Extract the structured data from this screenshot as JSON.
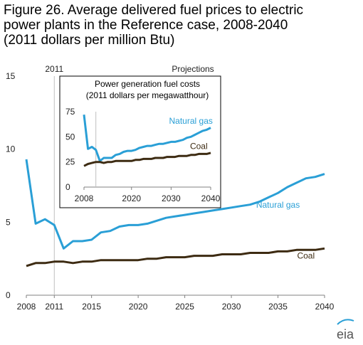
{
  "title_lines": [
    "Figure 26. Average delivered fuel prices to electric",
    "power plants in the Reference case, 2008-2040",
    "(2011 dollars per million Btu)"
  ],
  "logo_text": "eia",
  "colors": {
    "natural_gas": "#2a9fd6",
    "coal": "#3d2b12",
    "axis": "#808080",
    "divider": "#bfbfbf"
  },
  "chart_data": [
    {
      "type": "line",
      "title": "Figure 26. Average delivered fuel prices to electric power plants in the Reference case, 2008-2040 (2011 dollars per million Btu)",
      "annotations": [
        "2011",
        "Projections"
      ],
      "divider_year": 2011,
      "xlim": [
        2008,
        2040
      ],
      "ylim": [
        0,
        15
      ],
      "x_ticks": [
        2008,
        2011,
        2015,
        2020,
        2025,
        2030,
        2035,
        2040
      ],
      "y_ticks": [
        0,
        5,
        10,
        15
      ],
      "grid": false,
      "x": [
        2008,
        2009,
        2010,
        2011,
        2012,
        2013,
        2014,
        2015,
        2016,
        2017,
        2018,
        2019,
        2020,
        2021,
        2022,
        2023,
        2024,
        2025,
        2026,
        2027,
        2028,
        2029,
        2030,
        2031,
        2032,
        2033,
        2034,
        2035,
        2036,
        2037,
        2038,
        2039,
        2040
      ],
      "series": [
        {
          "name": "Natural gas",
          "label_year": 2035,
          "label_value": 6.0,
          "values": [
            9.3,
            4.9,
            5.2,
            4.8,
            3.2,
            3.7,
            3.7,
            3.8,
            4.3,
            4.4,
            4.7,
            4.8,
            4.8,
            4.9,
            5.1,
            5.3,
            5.4,
            5.5,
            5.6,
            5.7,
            5.8,
            5.9,
            6.0,
            6.1,
            6.2,
            6.4,
            6.7,
            7.0,
            7.4,
            7.7,
            8.0,
            8.1,
            8.3
          ]
        },
        {
          "name": "Coal",
          "label_year": 2038,
          "label_value": 2.5,
          "values": [
            2.0,
            2.2,
            2.2,
            2.3,
            2.3,
            2.2,
            2.3,
            2.3,
            2.4,
            2.4,
            2.4,
            2.4,
            2.4,
            2.5,
            2.5,
            2.6,
            2.6,
            2.6,
            2.7,
            2.7,
            2.7,
            2.8,
            2.8,
            2.8,
            2.9,
            2.9,
            2.9,
            3.0,
            3.0,
            3.1,
            3.1,
            3.1,
            3.2
          ]
        }
      ]
    },
    {
      "type": "line",
      "title": "Power generation fuel costs",
      "subtitle": "(2011 dollars per megawatthour)",
      "xlim": [
        2008,
        2040
      ],
      "ylim": [
        0,
        75
      ],
      "x_ticks": [
        2008,
        2020,
        2030,
        2040
      ],
      "y_ticks": [
        0,
        25,
        50,
        75
      ],
      "grid": false,
      "x": [
        2008,
        2009,
        2010,
        2011,
        2012,
        2013,
        2014,
        2015,
        2016,
        2017,
        2018,
        2019,
        2020,
        2021,
        2022,
        2023,
        2024,
        2025,
        2026,
        2027,
        2028,
        2029,
        2030,
        2031,
        2032,
        2033,
        2034,
        2035,
        2036,
        2037,
        2038,
        2039,
        2040
      ],
      "series": [
        {
          "name": "Natural gas",
          "label_year": 2035,
          "label_value": 63,
          "values": [
            72,
            38,
            40,
            37,
            26,
            29,
            29,
            29,
            32,
            33,
            35,
            36,
            36,
            37,
            39,
            40,
            41,
            41,
            42,
            43,
            43,
            44,
            45,
            45,
            46,
            47,
            49,
            50,
            52,
            54,
            56,
            57,
            59
          ]
        },
        {
          "name": "Coal",
          "label_year": 2037,
          "label_value": 38,
          "values": [
            21,
            23,
            24,
            25,
            25,
            24,
            25,
            25,
            26,
            26,
            26,
            26,
            26,
            27,
            27,
            28,
            28,
            28,
            29,
            29,
            29,
            30,
            30,
            30,
            31,
            31,
            31,
            32,
            32,
            33,
            33,
            33,
            34
          ]
        }
      ]
    }
  ]
}
